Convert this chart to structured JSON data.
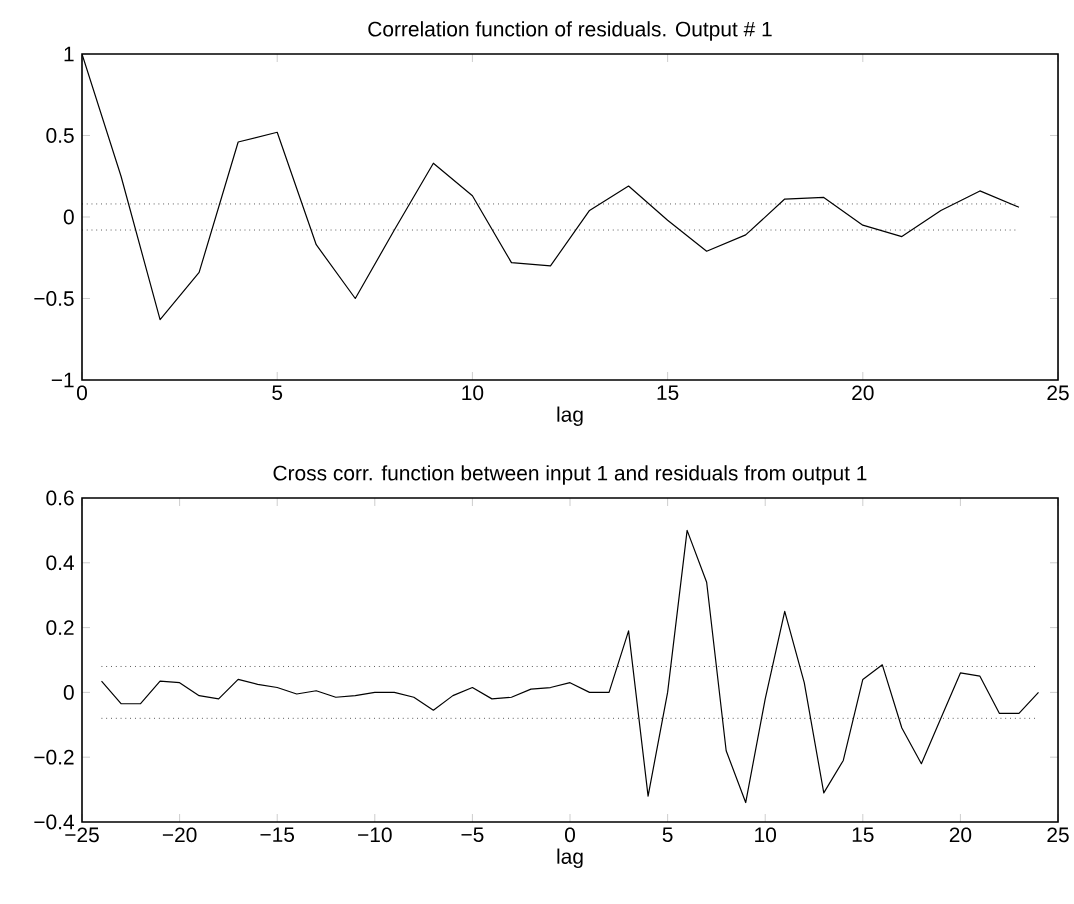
{
  "chart_data": [
    {
      "type": "line",
      "title": "Correlation function of residuals. Output # 1",
      "xlabel": "lag",
      "x": [
        0,
        1,
        2,
        3,
        4,
        5,
        6,
        7,
        8,
        9,
        10,
        11,
        12,
        13,
        14,
        15,
        16,
        17,
        18,
        19,
        20,
        21,
        22,
        23,
        24
      ],
      "values": [
        1,
        0.25,
        -0.63,
        -0.34,
        0.46,
        0.52,
        -0.17,
        -0.5,
        -0.08,
        0.33,
        0.13,
        -0.28,
        -0.3,
        0.04,
        0.19,
        -0.02,
        -0.21,
        -0.11,
        0.11,
        0.12,
        -0.05,
        -0.12,
        0.04,
        0.16,
        0.06
      ],
      "color": "#000000",
      "xlim": [
        0,
        25
      ],
      "ylim": [
        -1,
        1
      ],
      "xticks": [
        0,
        5,
        10,
        15,
        20,
        25
      ],
      "yticks": [
        {
          "value": -1,
          "label": "−1"
        },
        {
          "value": -0.5,
          "label": "−0.5"
        },
        0,
        0.5,
        1
      ],
      "ref_lines": [
        {
          "axis": "y",
          "value": 0.08,
          "color": "#000000",
          "line_style": "dotted"
        },
        {
          "axis": "y",
          "value": -0.08,
          "color": "#000000",
          "line_style": "dotted"
        }
      ]
    },
    {
      "type": "line",
      "title": "Cross corr. function between input 1 and residuals from output 1",
      "xlabel": "lag",
      "x": [
        -24,
        -23,
        -22,
        -21,
        -20,
        -19,
        -18,
        -17,
        -16,
        -15,
        -14,
        -13,
        -12,
        -11,
        -10,
        -9,
        -8,
        -7,
        -6,
        -5,
        -4,
        -3,
        -2,
        -1,
        0,
        1,
        2,
        3,
        4,
        5,
        6,
        7,
        8,
        9,
        10,
        11,
        12,
        13,
        14,
        15,
        16,
        17,
        18,
        19,
        20,
        21,
        22,
        23,
        24
      ],
      "values": [
        0.035,
        -0.035,
        -0.035,
        0.035,
        0.03,
        -0.01,
        -0.02,
        0.04,
        0.025,
        0.015,
        -0.005,
        0.005,
        -0.015,
        -0.01,
        0,
        0,
        -0.015,
        -0.055,
        -0.01,
        0.015,
        -0.02,
        -0.015,
        0.01,
        0.015,
        0.03,
        0,
        0,
        0.19,
        -0.32,
        0,
        0.5,
        0.34,
        -0.18,
        -0.34,
        -0.02,
        0.25,
        0.03,
        -0.31,
        -0.21,
        0.04,
        0.085,
        -0.11,
        -0.22,
        -0.08,
        0.06,
        0.05,
        -0.065,
        -0.065,
        0
      ],
      "color": "#000000",
      "xlim": [
        -25,
        25
      ],
      "ylim": [
        -0.4,
        0.6
      ],
      "xticks": [
        {
          "value": -25,
          "label": "−25"
        },
        {
          "value": -20,
          "label": "−20"
        },
        {
          "value": -15,
          "label": "−15"
        },
        {
          "value": -10,
          "label": "−10"
        },
        {
          "value": -5,
          "label": "−5"
        },
        0,
        5,
        10,
        15,
        20,
        25
      ],
      "yticks": [
        {
          "value": -0.4,
          "label": "−0.4"
        },
        {
          "value": -0.2,
          "label": "−0.2"
        },
        0,
        0.2,
        0.4,
        0.6
      ],
      "ref_lines": [
        {
          "axis": "y",
          "value": 0.08,
          "color": "#000000",
          "line_style": "dotted"
        },
        {
          "axis": "y",
          "value": -0.08,
          "color": "#000000",
          "line_style": "dotted"
        }
      ]
    }
  ]
}
